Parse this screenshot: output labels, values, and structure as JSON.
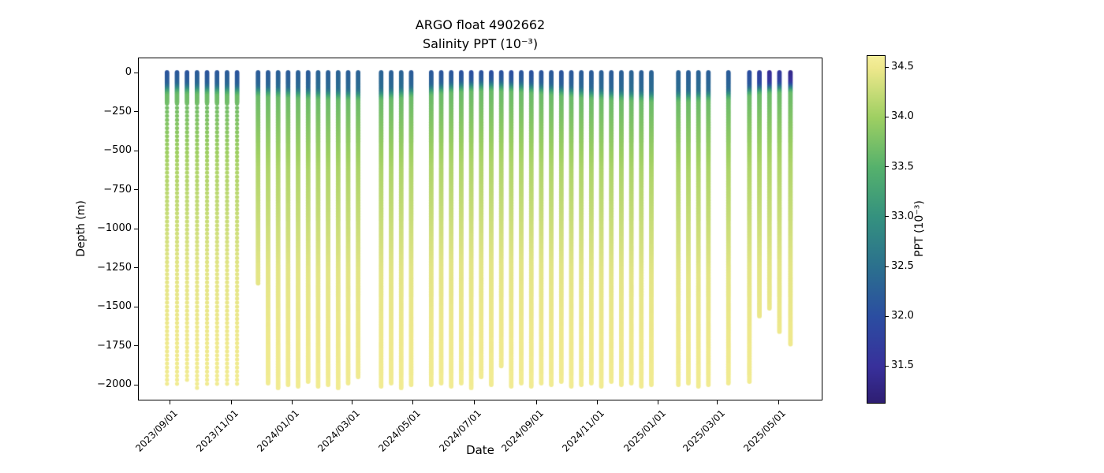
{
  "chart_data": {
    "type": "scatter",
    "title": "ARGO float 4902662",
    "subtitle": "Salinity PPT (10⁻³)",
    "xlabel": "Date",
    "ylabel": "Depth (m)",
    "grid": false,
    "marker": "circle",
    "xlim": [
      "2023/07/31",
      "2025/06/14"
    ],
    "ylim": [
      -2101,
      96
    ],
    "x_tick_labels": [
      "2023/09/01",
      "2023/11/01",
      "2024/01/01",
      "2024/03/01",
      "2024/05/01",
      "2024/07/01",
      "2024/09/01",
      "2024/11/01",
      "2025/01/01",
      "2025/03/01",
      "2025/05/01"
    ],
    "y_tick_values": [
      0,
      -250,
      -500,
      -750,
      -1000,
      -1250,
      -1500,
      -1750,
      -2000
    ],
    "y_tick_labels": [
      "0",
      "−250",
      "−500",
      "−750",
      "−1000",
      "−1250",
      "−1500",
      "−1750",
      "−2000"
    ],
    "colorbar": {
      "label": "PPT (10⁻³)",
      "vmin": 31.14,
      "vmax": 34.62,
      "tick_values": [
        34.5,
        34.0,
        33.5,
        33.0,
        32.5,
        32.0,
        31.5
      ],
      "tick_labels": [
        "34.5",
        "34.0",
        "33.5",
        "33.0",
        "32.5",
        "32.0",
        "31.5"
      ],
      "stops": [
        [
          31.14,
          "#2e1e72"
        ],
        [
          31.5,
          "#38309b"
        ],
        [
          32.0,
          "#2b4da1"
        ],
        [
          32.5,
          "#2b708e"
        ],
        [
          33.0,
          "#34917f"
        ],
        [
          33.5,
          "#55b16c"
        ],
        [
          34.0,
          "#9ecf62"
        ],
        [
          34.5,
          "#eee88c"
        ],
        [
          34.62,
          "#f5ef9b"
        ]
      ]
    },
    "salinity_model": {
      "mixed_layer_rise": 0.15,
      "halocline_thickness_m": 90,
      "deep_profile": [
        [
          0,
          33.65
        ],
        [
          450,
          34.1
        ],
        [
          1100,
          34.43
        ],
        [
          2000,
          34.58
        ]
      ]
    },
    "profile_fields": [
      "date",
      "bottom_depth_m",
      "surface_ppt",
      "mixed_layer_m",
      "sampling"
    ],
    "profiles": [
      [
        "2023/08/29",
        -2000,
        32.1,
        65,
        "s"
      ],
      [
        "2023/09/08",
        -2010,
        32.15,
        60,
        "s"
      ],
      [
        "2023/09/18",
        -1990,
        32.1,
        62,
        "s"
      ],
      [
        "2023/09/28",
        -2020,
        32.2,
        64,
        "s"
      ],
      [
        "2023/10/08",
        -2000,
        32.1,
        66,
        "s"
      ],
      [
        "2023/10/18",
        -2015,
        32.15,
        68,
        "s"
      ],
      [
        "2023/10/28",
        -1995,
        32.2,
        70,
        "s"
      ],
      [
        "2023/11/07",
        -2010,
        32.1,
        72,
        "s"
      ],
      [
        "2023/11/28",
        -1350,
        32.2,
        78,
        "d"
      ],
      [
        "2023/12/08",
        -1990,
        32.2,
        82,
        "d"
      ],
      [
        "2023/12/18",
        -2020,
        32.25,
        85,
        "d"
      ],
      [
        "2023/12/28",
        -2000,
        32.2,
        88,
        "d"
      ],
      [
        "2024/01/07",
        -2010,
        32.25,
        92,
        "d"
      ],
      [
        "2024/01/17",
        -1985,
        32.2,
        95,
        "d"
      ],
      [
        "2024/01/27",
        -2015,
        32.3,
        98,
        "d"
      ],
      [
        "2024/02/06",
        -2000,
        32.25,
        100,
        "d"
      ],
      [
        "2024/02/16",
        -2025,
        32.3,
        102,
        "d"
      ],
      [
        "2024/02/26",
        -1995,
        32.25,
        103,
        "d"
      ],
      [
        "2024/03/07",
        -1950,
        32.3,
        104,
        "d"
      ],
      [
        "2024/03/30",
        -2010,
        32.3,
        100,
        "d"
      ],
      [
        "2024/04/09",
        -1995,
        32.25,
        95,
        "d"
      ],
      [
        "2024/04/19",
        -2020,
        32.3,
        90,
        "d"
      ],
      [
        "2024/04/29",
        -2000,
        32.2,
        82,
        "d"
      ],
      [
        "2024/05/19",
        -2005,
        32.15,
        70,
        "d"
      ],
      [
        "2024/05/29",
        -1990,
        32.1,
        62,
        "d"
      ],
      [
        "2024/06/08",
        -2015,
        32.1,
        55,
        "d"
      ],
      [
        "2024/06/18",
        -1995,
        32.05,
        50,
        "d"
      ],
      [
        "2024/06/28",
        -2020,
        32.0,
        46,
        "d"
      ],
      [
        "2024/07/08",
        -1950,
        32.05,
        44,
        "d"
      ],
      [
        "2024/07/18",
        -2000,
        32.0,
        42,
        "d"
      ],
      [
        "2024/07/28",
        -1885,
        32.05,
        45,
        "d"
      ],
      [
        "2024/08/07",
        -2010,
        32.0,
        48,
        "d"
      ],
      [
        "2024/08/17",
        -1990,
        32.1,
        52,
        "d"
      ],
      [
        "2024/08/27",
        -2015,
        32.05,
        58,
        "d"
      ],
      [
        "2024/09/06",
        -1995,
        32.1,
        64,
        "d"
      ],
      [
        "2024/09/16",
        -2005,
        32.15,
        70,
        "d"
      ],
      [
        "2024/09/26",
        -1985,
        32.1,
        76,
        "d"
      ],
      [
        "2024/10/06",
        -2015,
        32.15,
        82,
        "d"
      ],
      [
        "2024/10/16",
        -2000,
        32.2,
        88,
        "d"
      ],
      [
        "2024/10/26",
        -1990,
        32.2,
        94,
        "d"
      ],
      [
        "2024/11/05",
        -2010,
        32.25,
        98,
        "d"
      ],
      [
        "2024/11/15",
        -1985,
        32.2,
        102,
        "d"
      ],
      [
        "2024/11/25",
        -2005,
        32.25,
        105,
        "d"
      ],
      [
        "2024/12/05",
        -1995,
        32.3,
        108,
        "d"
      ],
      [
        "2024/12/15",
        -2015,
        32.25,
        110,
        "d"
      ],
      [
        "2024/12/25",
        -2000,
        32.3,
        112,
        "d"
      ],
      [
        "2025/01/21",
        -2005,
        32.3,
        112,
        "d"
      ],
      [
        "2025/01/31",
        -1990,
        32.25,
        112,
        "d"
      ],
      [
        "2025/02/10",
        -2010,
        32.3,
        110,
        "d"
      ],
      [
        "2025/02/20",
        -2000,
        32.25,
        108,
        "d"
      ],
      [
        "2025/03/12",
        -1990,
        32.2,
        100,
        "d"
      ],
      [
        "2025/04/02",
        -1980,
        32.0,
        75,
        "d"
      ],
      [
        "2025/04/12",
        -1560,
        31.75,
        65,
        "d"
      ],
      [
        "2025/04/22",
        -1510,
        31.45,
        58,
        "d"
      ],
      [
        "2025/05/02",
        -1660,
        31.65,
        55,
        "d"
      ],
      [
        "2025/05/13",
        -1740,
        31.35,
        52,
        "d"
      ]
    ]
  }
}
